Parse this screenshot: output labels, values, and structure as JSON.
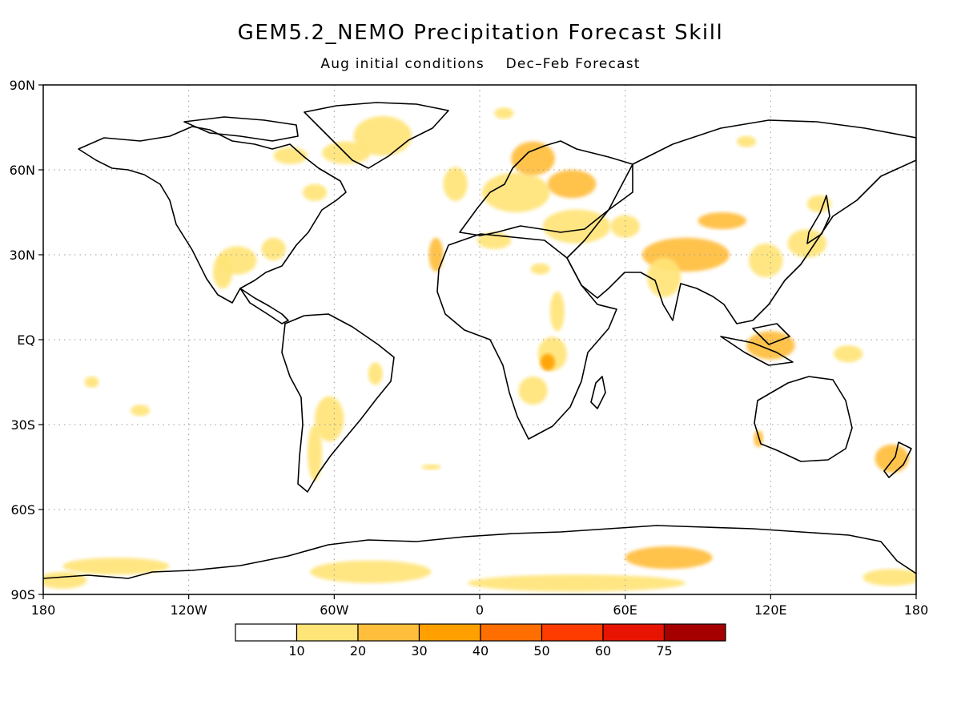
{
  "title": "GEM5.2_NEMO Precipitation Forecast Skill",
  "subtitle": {
    "initial": "Aug initial conditions",
    "forecast": "Dec–Feb Forecast"
  },
  "map": {
    "lon_range": [
      -180,
      180
    ],
    "lat_range": [
      -90,
      90
    ],
    "grid": true,
    "lon_ticks": [
      {
        "value": -180,
        "label": "180"
      },
      {
        "value": -120,
        "label": "120W"
      },
      {
        "value": -60,
        "label": "60W"
      },
      {
        "value": 0,
        "label": "0"
      },
      {
        "value": 60,
        "label": "60E"
      },
      {
        "value": 120,
        "label": "120E"
      },
      {
        "value": 180,
        "label": "180"
      }
    ],
    "lat_ticks": [
      {
        "value": 90,
        "label": "90N"
      },
      {
        "value": 60,
        "label": "60N"
      },
      {
        "value": 30,
        "label": "30N"
      },
      {
        "value": 0,
        "label": "EQ"
      },
      {
        "value": -30,
        "label": "30S"
      },
      {
        "value": -60,
        "label": "60S"
      },
      {
        "value": -90,
        "label": "90S"
      }
    ]
  },
  "colorbar": {
    "labels": [
      "10",
      "20",
      "30",
      "40",
      "50",
      "60",
      "75"
    ],
    "colors": [
      "#ffffff",
      "#ffe478",
      "#ffbe3c",
      "#ffa000",
      "#ff6e00",
      "#ff3c00",
      "#e61400",
      "#a50000"
    ]
  },
  "skill_regions": [
    {
      "lon": -40,
      "lat": 72,
      "rlon": 12,
      "rlat": 7,
      "level": 1
    },
    {
      "lon": -55,
      "lat": 66,
      "rlon": 10,
      "rlat": 4,
      "level": 1
    },
    {
      "lon": -78,
      "lat": 65,
      "rlon": 7,
      "rlat": 3,
      "level": 1
    },
    {
      "lon": -68,
      "lat": 52,
      "rlon": 5,
      "rlat": 3,
      "level": 1
    },
    {
      "lon": -100,
      "lat": 28,
      "rlon": 8,
      "rlat": 5,
      "level": 1
    },
    {
      "lon": -106,
      "lat": 24,
      "rlon": 4,
      "rlat": 6,
      "level": 1
    },
    {
      "lon": -85,
      "lat": 32,
      "rlon": 5,
      "rlat": 4,
      "level": 1
    },
    {
      "lon": -160,
      "lat": -15,
      "rlon": 3,
      "rlat": 2,
      "level": 1
    },
    {
      "lon": -140,
      "lat": -25,
      "rlon": 4,
      "rlat": 2,
      "level": 1
    },
    {
      "lon": -62,
      "lat": -28,
      "rlon": 6,
      "rlat": 8,
      "level": 1
    },
    {
      "lon": -68,
      "lat": -40,
      "rlon": 3,
      "rlat": 10,
      "level": 1
    },
    {
      "lon": -43,
      "lat": -12,
      "rlon": 3,
      "rlat": 4,
      "level": 1
    },
    {
      "lon": -20,
      "lat": -45,
      "rlon": 4,
      "rlat": 1,
      "level": 1
    },
    {
      "lon": -10,
      "lat": 55,
      "rlon": 5,
      "rlat": 6,
      "level": 1
    },
    {
      "lon": 15,
      "lat": 52,
      "rlon": 14,
      "rlat": 7,
      "level": 1
    },
    {
      "lon": 22,
      "lat": 64,
      "rlon": 9,
      "rlat": 6,
      "level": 2
    },
    {
      "lon": 38,
      "lat": 55,
      "rlon": 10,
      "rlat": 5,
      "level": 2
    },
    {
      "lon": 40,
      "lat": 40,
      "rlon": 14,
      "rlat": 6,
      "level": 1
    },
    {
      "lon": 6,
      "lat": 35,
      "rlon": 7,
      "rlat": 3,
      "level": 1
    },
    {
      "lon": -18,
      "lat": 30,
      "rlon": 3,
      "rlat": 6,
      "level": 2
    },
    {
      "lon": 25,
      "lat": 25,
      "rlon": 4,
      "rlat": 2,
      "level": 1
    },
    {
      "lon": 32,
      "lat": 10,
      "rlon": 3,
      "rlat": 7,
      "level": 1
    },
    {
      "lon": 30,
      "lat": -5,
      "rlon": 6,
      "rlat": 6,
      "level": 1
    },
    {
      "lon": 28,
      "lat": -8,
      "rlon": 3,
      "rlat": 3,
      "level": 3
    },
    {
      "lon": 22,
      "lat": -18,
      "rlon": 6,
      "rlat": 5,
      "level": 1
    },
    {
      "lon": 60,
      "lat": 40,
      "rlon": 6,
      "rlat": 4,
      "level": 1
    },
    {
      "lon": 85,
      "lat": 30,
      "rlon": 18,
      "rlat": 6,
      "level": 2
    },
    {
      "lon": 76,
      "lat": 22,
      "rlon": 7,
      "rlat": 7,
      "level": 1
    },
    {
      "lon": 100,
      "lat": 42,
      "rlon": 10,
      "rlat": 3,
      "level": 2
    },
    {
      "lon": 118,
      "lat": 28,
      "rlon": 7,
      "rlat": 6,
      "level": 1
    },
    {
      "lon": 135,
      "lat": 34,
      "rlon": 8,
      "rlat": 5,
      "level": 1
    },
    {
      "lon": 140,
      "lat": 48,
      "rlon": 5,
      "rlat": 3,
      "level": 1
    },
    {
      "lon": 120,
      "lat": -2,
      "rlon": 10,
      "rlat": 5,
      "level": 2
    },
    {
      "lon": 152,
      "lat": -5,
      "rlon": 6,
      "rlat": 3,
      "level": 1
    },
    {
      "lon": 115,
      "lat": -35,
      "rlon": 2,
      "rlat": 3,
      "level": 2
    },
    {
      "lon": 170,
      "lat": -42,
      "rlon": 7,
      "rlat": 5,
      "level": 2
    },
    {
      "lon": -150,
      "lat": -80,
      "rlon": 22,
      "rlat": 3,
      "level": 1
    },
    {
      "lon": -172,
      "lat": -85,
      "rlon": 10,
      "rlat": 3,
      "level": 1
    },
    {
      "lon": -45,
      "lat": -82,
      "rlon": 25,
      "rlat": 4,
      "level": 1
    },
    {
      "lon": 78,
      "lat": -77,
      "rlon": 18,
      "rlat": 4,
      "level": 2
    },
    {
      "lon": 40,
      "lat": -86,
      "rlon": 45,
      "rlat": 3,
      "level": 1
    },
    {
      "lon": 170,
      "lat": -84,
      "rlon": 12,
      "rlat": 3,
      "level": 1
    },
    {
      "lon": 110,
      "lat": 70,
      "rlon": 4,
      "rlat": 2,
      "level": 1
    },
    {
      "lon": 10,
      "lat": 80,
      "rlon": 4,
      "rlat": 2,
      "level": 1
    }
  ]
}
